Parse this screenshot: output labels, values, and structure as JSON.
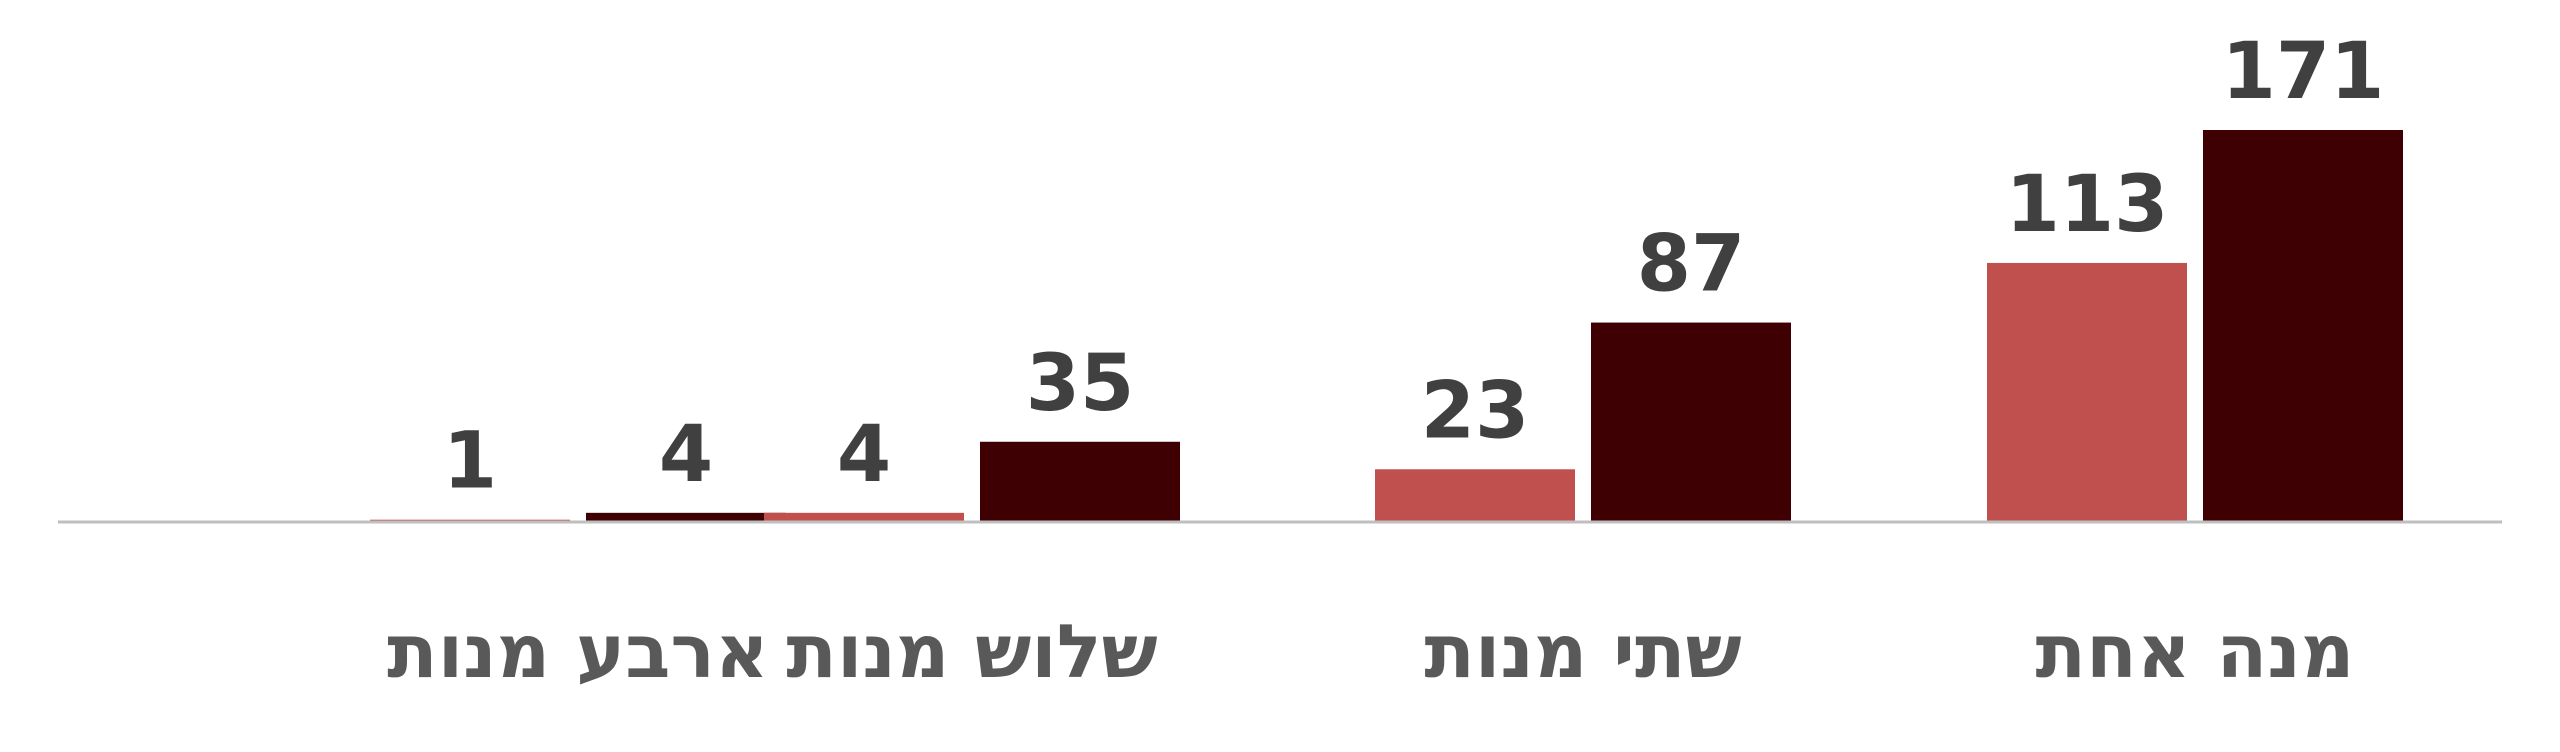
{
  "chart_data": {
    "type": "bar",
    "categories": [
      "ארבע מנות",
      "שלוש מנות",
      "שתי מנות",
      "מנה אחת"
    ],
    "series": [
      {
        "color": "#C0504D",
        "values": [
          1,
          4,
          23,
          113
        ]
      },
      {
        "color": "#3F0003",
        "values": [
          4,
          35,
          87,
          171
        ]
      }
    ],
    "title": "",
    "xlabel": "",
    "ylabel": "",
    "ylim": [
      0,
      171
    ],
    "grid": false,
    "axis_color": "#BFBFBF",
    "legend": "none"
  }
}
